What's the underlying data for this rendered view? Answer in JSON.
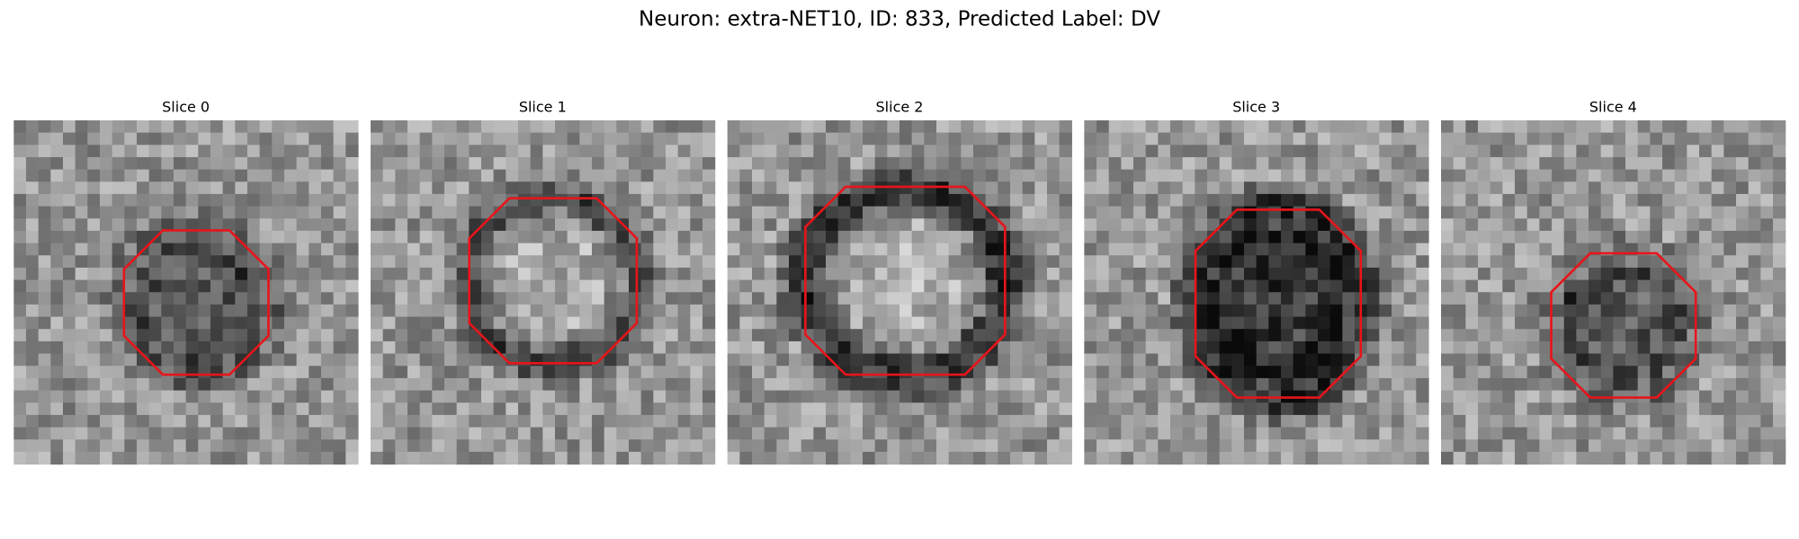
{
  "figure": {
    "title": "Neuron: extra-NET10, ID: 833, Predicted Label: DV",
    "panels": [
      {
        "title": "Slice 0"
      },
      {
        "title": "Slice 1"
      },
      {
        "title": "Slice 2"
      },
      {
        "title": "Slice 3"
      },
      {
        "title": "Slice 4"
      }
    ]
  }
}
